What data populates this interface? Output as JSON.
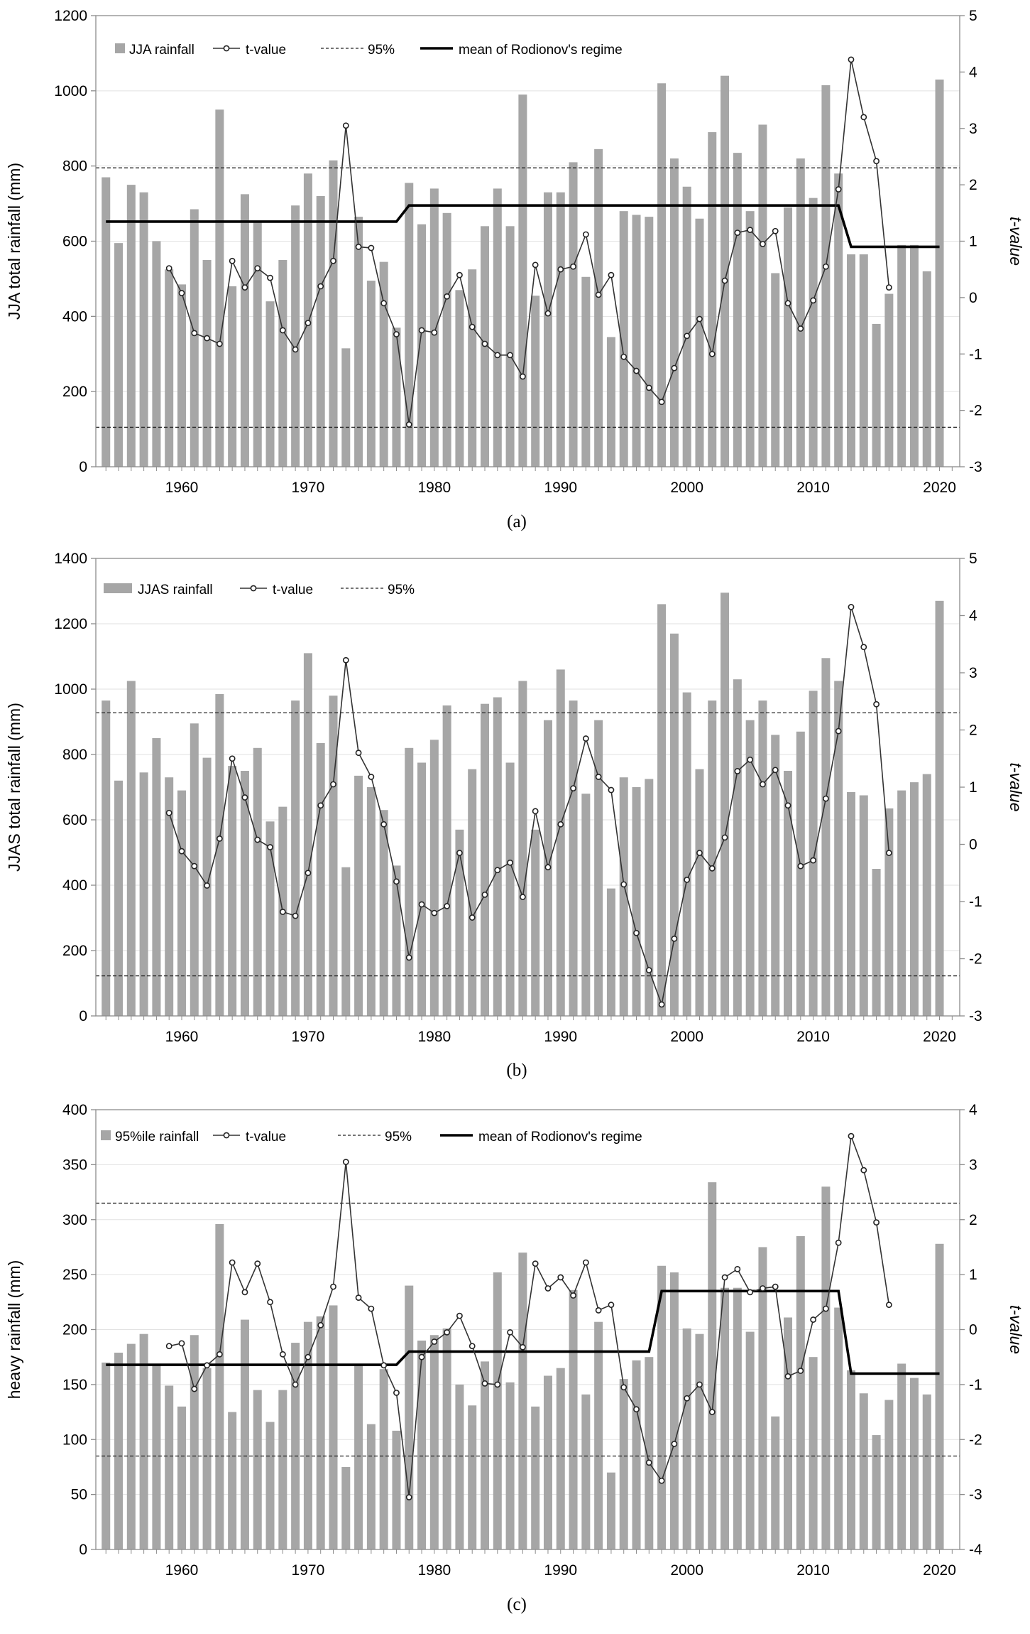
{
  "figure": {
    "panel_labels": [
      "(a)",
      "(b)",
      "(c)"
    ]
  },
  "chart_data": [
    {
      "type": "bar",
      "panel": "(a)",
      "xlabel": "",
      "ylabel": "JJA total rainfall (mm)",
      "y2label": "t-value",
      "ylim": [
        0,
        1200
      ],
      "yticks": [
        0,
        200,
        400,
        600,
        800,
        1000,
        1200
      ],
      "y2lim": [
        -3,
        5
      ],
      "y2ticks": [
        -3,
        -2,
        -1,
        0,
        1,
        2,
        3,
        4,
        5
      ],
      "xticks": [
        1960,
        1970,
        1980,
        1990,
        2000,
        2010,
        2020
      ],
      "legend": [
        "JJA rainfall",
        "t-value",
        "95%",
        "mean of Rodionov's regime"
      ],
      "x": [
        1954,
        1955,
        1956,
        1957,
        1958,
        1959,
        1960,
        1961,
        1962,
        1963,
        1964,
        1965,
        1966,
        1967,
        1968,
        1969,
        1970,
        1971,
        1972,
        1973,
        1974,
        1975,
        1976,
        1977,
        1978,
        1979,
        1980,
        1981,
        1982,
        1983,
        1984,
        1985,
        1986,
        1987,
        1988,
        1989,
        1990,
        1991,
        1992,
        1993,
        1994,
        1995,
        1996,
        1997,
        1998,
        1999,
        2000,
        2001,
        2002,
        2003,
        2004,
        2005,
        2006,
        2007,
        2008,
        2009,
        2010,
        2011,
        2012,
        2013,
        2014,
        2015,
        2016,
        2017,
        2018,
        2019,
        2020
      ],
      "bar_values": [
        770,
        595,
        750,
        730,
        600,
        525,
        485,
        685,
        550,
        950,
        480,
        725,
        650,
        440,
        550,
        695,
        780,
        720,
        815,
        315,
        665,
        495,
        545,
        370,
        755,
        645,
        740,
        675,
        470,
        525,
        640,
        740,
        640,
        990,
        455,
        730,
        730,
        810,
        505,
        845,
        345,
        680,
        670,
        665,
        1020,
        820,
        745,
        660,
        890,
        1040,
        835,
        680,
        910,
        515,
        690,
        820,
        715,
        1015,
        780,
        565,
        565,
        380,
        460,
        590,
        590,
        520,
        1030
      ],
      "t_years": [
        1959,
        1960,
        1961,
        1962,
        1963,
        1964,
        1965,
        1966,
        1967,
        1968,
        1969,
        1970,
        1971,
        1972,
        1973,
        1974,
        1975,
        1976,
        1977,
        1978,
        1979,
        1980,
        1981,
        1982,
        1983,
        1984,
        1985,
        1986,
        1987,
        1988,
        1989,
        1990,
        1991,
        1992,
        1993,
        1994,
        1995,
        1996,
        1997,
        1998,
        1999,
        2000,
        2001,
        2002,
        2003,
        2004,
        2005,
        2006,
        2007,
        2008,
        2009,
        2010,
        2011,
        2012,
        2013,
        2014,
        2015,
        2016
      ],
      "t_values": [
        0.52,
        0.08,
        -0.63,
        -0.72,
        -0.82,
        0.65,
        0.18,
        0.52,
        0.35,
        -0.58,
        -0.92,
        -0.45,
        0.2,
        0.65,
        3.05,
        0.9,
        0.88,
        -0.1,
        -0.65,
        -2.25,
        -0.58,
        -0.62,
        0.02,
        0.4,
        -0.52,
        -0.82,
        -1.02,
        -1.02,
        -1.4,
        0.58,
        -0.28,
        0.5,
        0.55,
        1.12,
        0.05,
        0.4,
        -1.05,
        -1.3,
        -1.6,
        -1.85,
        -1.25,
        -0.68,
        -0.38,
        -1.0,
        0.3,
        1.15,
        1.2,
        0.95,
        1.18,
        -0.1,
        -0.55,
        -0.05,
        0.55,
        1.92,
        4.22,
        3.2,
        2.42,
        0.18
      ],
      "t_threshold": [
        2.3,
        -2.3
      ],
      "regime_mean": [
        {
          "from": 1954,
          "to": 1977,
          "value": 652
        },
        {
          "from": 1978,
          "to": 2012,
          "value": 695
        },
        {
          "from": 2013,
          "to": 2020,
          "value": 585
        }
      ]
    },
    {
      "type": "bar",
      "panel": "(b)",
      "xlabel": "",
      "ylabel": "JJAS total rainfall (mm)",
      "y2label": "t-value",
      "ylim": [
        0,
        1400
      ],
      "yticks": [
        0,
        200,
        400,
        600,
        800,
        1000,
        1200,
        1400
      ],
      "y2lim": [
        -3,
        5
      ],
      "y2ticks": [
        -3,
        -2,
        -1,
        0,
        1,
        2,
        3,
        4,
        5
      ],
      "xticks": [
        1960,
        1970,
        1980,
        1990,
        2000,
        2010,
        2020
      ],
      "legend": [
        "JJAS rainfall",
        "t-value",
        "95%"
      ],
      "x": [
        1954,
        1955,
        1956,
        1957,
        1958,
        1959,
        1960,
        1961,
        1962,
        1963,
        1964,
        1965,
        1966,
        1967,
        1968,
        1969,
        1970,
        1971,
        1972,
        1973,
        1974,
        1975,
        1976,
        1977,
        1978,
        1979,
        1980,
        1981,
        1982,
        1983,
        1984,
        1985,
        1986,
        1987,
        1988,
        1989,
        1990,
        1991,
        1992,
        1993,
        1994,
        1995,
        1996,
        1997,
        1998,
        1999,
        2000,
        2001,
        2002,
        2003,
        2004,
        2005,
        2006,
        2007,
        2008,
        2009,
        2010,
        2011,
        2012,
        2013,
        2014,
        2015,
        2016,
        2017,
        2018,
        2019,
        2020
      ],
      "bar_values": [
        965,
        720,
        1025,
        745,
        850,
        730,
        690,
        895,
        790,
        985,
        765,
        750,
        820,
        595,
        640,
        965,
        1110,
        835,
        980,
        455,
        735,
        700,
        630,
        460,
        820,
        775,
        845,
        950,
        570,
        755,
        955,
        975,
        775,
        1025,
        570,
        905,
        1060,
        965,
        680,
        905,
        390,
        730,
        700,
        725,
        1260,
        1170,
        990,
        755,
        965,
        1295,
        1030,
        905,
        965,
        860,
        750,
        870,
        995,
        1095,
        1025,
        685,
        675,
        450,
        635,
        690,
        715,
        740,
        1270
      ],
      "t_years": [
        1959,
        1960,
        1961,
        1962,
        1963,
        1964,
        1965,
        1966,
        1967,
        1968,
        1969,
        1970,
        1971,
        1972,
        1973,
        1974,
        1975,
        1976,
        1977,
        1978,
        1979,
        1980,
        1981,
        1982,
        1983,
        1984,
        1985,
        1986,
        1987,
        1988,
        1989,
        1990,
        1991,
        1992,
        1993,
        1994,
        1995,
        1996,
        1997,
        1998,
        1999,
        2000,
        2001,
        2002,
        2003,
        2004,
        2005,
        2006,
        2007,
        2008,
        2009,
        2010,
        2011,
        2012,
        2013,
        2014,
        2015,
        2016
      ],
      "t_values": [
        0.55,
        -0.12,
        -0.38,
        -0.72,
        0.1,
        1.5,
        0.82,
        0.08,
        -0.05,
        -1.18,
        -1.25,
        -0.5,
        0.68,
        1.05,
        3.22,
        1.6,
        1.18,
        0.35,
        -0.65,
        -1.98,
        -1.05,
        -1.2,
        -1.08,
        -0.15,
        -1.28,
        -0.88,
        -0.45,
        -0.32,
        -0.92,
        0.58,
        -0.4,
        0.35,
        0.98,
        1.85,
        1.18,
        0.95,
        -0.7,
        -1.55,
        -2.2,
        -2.8,
        -1.65,
        -0.62,
        -0.15,
        -0.42,
        0.12,
        1.28,
        1.48,
        1.05,
        1.3,
        0.68,
        -0.38,
        -0.28,
        0.8,
        1.98,
        4.15,
        3.45,
        2.45,
        -0.15
      ],
      "t_threshold": [
        2.3,
        -2.3
      ]
    },
    {
      "type": "bar",
      "panel": "(c)",
      "xlabel": "",
      "ylabel": "heavy rainfall (mm)",
      "y2label": "t-value",
      "ylim": [
        0,
        400
      ],
      "yticks": [
        0,
        50,
        100,
        150,
        200,
        250,
        300,
        350,
        400
      ],
      "y2lim": [
        -4,
        4
      ],
      "y2ticks": [
        -4,
        -3,
        -2,
        -1,
        0,
        1,
        2,
        3,
        4
      ],
      "xticks": [
        1960,
        1970,
        1980,
        1990,
        2000,
        2010,
        2020
      ],
      "legend": [
        "95%ile rainfall",
        "t-value",
        "95%",
        "mean of Rodionov's regime"
      ],
      "x": [
        1954,
        1955,
        1956,
        1957,
        1958,
        1959,
        1960,
        1961,
        1962,
        1963,
        1964,
        1965,
        1966,
        1967,
        1968,
        1969,
        1970,
        1971,
        1972,
        1973,
        1974,
        1975,
        1976,
        1977,
        1978,
        1979,
        1980,
        1981,
        1982,
        1983,
        1984,
        1985,
        1986,
        1987,
        1988,
        1989,
        1990,
        1991,
        1992,
        1993,
        1994,
        1995,
        1996,
        1997,
        1998,
        1999,
        2000,
        2001,
        2002,
        2003,
        2004,
        2005,
        2006,
        2007,
        2008,
        2009,
        2010,
        2011,
        2012,
        2013,
        2014,
        2015,
        2016,
        2017,
        2018,
        2019,
        2020
      ],
      "bar_values": [
        170,
        179,
        187,
        196,
        168,
        149,
        130,
        195,
        165,
        296,
        125,
        209,
        145,
        116,
        145,
        188,
        207,
        212,
        222,
        75,
        168,
        114,
        164,
        108,
        240,
        190,
        195,
        201,
        150,
        131,
        171,
        252,
        152,
        270,
        130,
        158,
        165,
        236,
        141,
        207,
        70,
        155,
        172,
        175,
        258,
        252,
        201,
        196,
        334,
        238,
        238,
        198,
        275,
        121,
        211,
        285,
        175,
        330,
        220,
        163,
        142,
        104,
        136,
        169,
        156,
        141,
        278
      ],
      "t_years": [
        1959,
        1960,
        1961,
        1962,
        1963,
        1964,
        1965,
        1966,
        1967,
        1968,
        1969,
        1970,
        1971,
        1972,
        1973,
        1974,
        1975,
        1976,
        1977,
        1978,
        1979,
        1980,
        1981,
        1982,
        1983,
        1984,
        1985,
        1986,
        1987,
        1988,
        1989,
        1990,
        1991,
        1992,
        1993,
        1994,
        1995,
        1996,
        1997,
        1998,
        1999,
        2000,
        2001,
        2002,
        2003,
        2004,
        2005,
        2006,
        2007,
        2008,
        2009,
        2010,
        2011,
        2012,
        2013,
        2014,
        2015,
        2016
      ],
      "t_values": [
        -0.3,
        -0.25,
        -1.08,
        -0.65,
        -0.45,
        1.22,
        0.68,
        1.2,
        0.5,
        -0.45,
        -1.0,
        -0.5,
        0.08,
        0.78,
        3.05,
        0.58,
        0.38,
        -0.65,
        -1.15,
        -3.05,
        -0.5,
        -0.22,
        -0.05,
        0.25,
        -0.3,
        -0.98,
        -1.0,
        -0.05,
        -0.32,
        1.2,
        0.75,
        0.95,
        0.62,
        1.22,
        0.35,
        0.45,
        -1.05,
        -1.45,
        -2.42,
        -2.75,
        -2.08,
        -1.25,
        -1.0,
        -1.5,
        0.95,
        1.1,
        0.68,
        0.75,
        0.78,
        -0.85,
        -0.75,
        0.18,
        0.38,
        1.58,
        3.52,
        2.9,
        1.95,
        0.45
      ],
      "t_threshold": [
        2.3,
        -2.3
      ],
      "regime_mean": [
        {
          "from": 1954,
          "to": 1977,
          "value": 168
        },
        {
          "from": 1978,
          "to": 1997,
          "value": 180
        },
        {
          "from": 1998,
          "to": 2012,
          "value": 235
        },
        {
          "from": 2013,
          "to": 2020,
          "value": 160
        }
      ]
    }
  ]
}
